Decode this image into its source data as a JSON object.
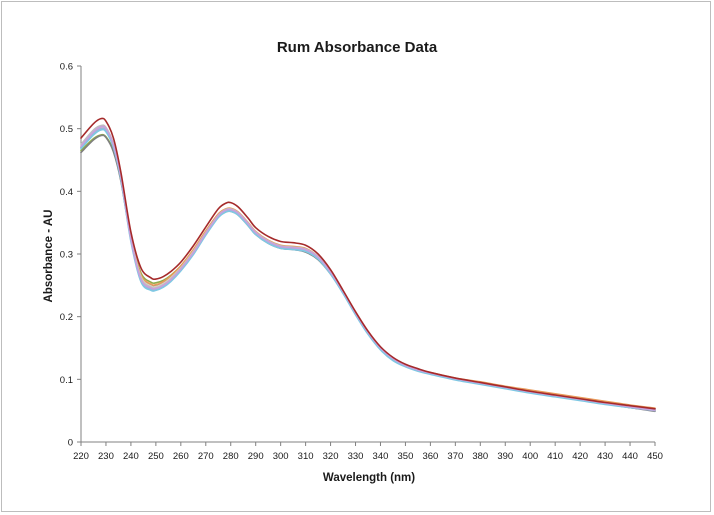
{
  "chart_data": {
    "type": "line",
    "title": "Rum Absorbance Data",
    "xlabel": "Wavelength (nm)",
    "ylabel": "Absorbance - AU",
    "xlim": [
      220,
      450
    ],
    "ylim": [
      0,
      0.6
    ],
    "x_ticks": [
      "220",
      "230",
      "240",
      "250",
      "260",
      "270",
      "280",
      "290",
      "300",
      "310",
      "320",
      "330",
      "340",
      "350",
      "360",
      "370",
      "380",
      "390",
      "400",
      "410",
      "420",
      "430",
      "440",
      "450"
    ],
    "y_ticks": [
      "0",
      "0.1",
      "0.2",
      "0.3",
      "0.4",
      "0.5",
      "0.6"
    ],
    "grid": false,
    "legend": "none",
    "x": [
      220,
      225,
      228,
      230,
      233,
      236,
      240,
      244,
      248,
      250,
      253,
      256,
      260,
      265,
      270,
      275,
      278,
      280,
      283,
      287,
      290,
      295,
      300,
      305,
      310,
      315,
      320,
      325,
      330,
      335,
      340,
      345,
      350,
      355,
      360,
      370,
      380,
      390,
      400,
      410,
      420,
      430,
      440,
      450
    ],
    "series": [
      {
        "color": "#a52a2a",
        "values": [
          0.485,
          0.508,
          0.516,
          0.512,
          0.485,
          0.43,
          0.335,
          0.278,
          0.262,
          0.26,
          0.264,
          0.272,
          0.287,
          0.313,
          0.343,
          0.372,
          0.381,
          0.382,
          0.375,
          0.357,
          0.342,
          0.328,
          0.32,
          0.318,
          0.314,
          0.3,
          0.275,
          0.242,
          0.208,
          0.177,
          0.152,
          0.135,
          0.124,
          0.117,
          0.111,
          0.102,
          0.095,
          0.088,
          0.081,
          0.075,
          0.069,
          0.063,
          0.058,
          0.053
        ]
      },
      {
        "color": "#8faa4a",
        "values": [
          0.465,
          0.484,
          0.49,
          0.487,
          0.465,
          0.418,
          0.328,
          0.27,
          0.255,
          0.254,
          0.258,
          0.266,
          0.281,
          0.306,
          0.334,
          0.36,
          0.368,
          0.369,
          0.363,
          0.346,
          0.332,
          0.318,
          0.31,
          0.308,
          0.305,
          0.293,
          0.27,
          0.24,
          0.207,
          0.176,
          0.151,
          0.134,
          0.123,
          0.116,
          0.11,
          0.101,
          0.094,
          0.086,
          0.079,
          0.073,
          0.067,
          0.061,
          0.055,
          0.05
        ]
      },
      {
        "color": "#7f7f7f",
        "values": [
          0.462,
          0.482,
          0.489,
          0.486,
          0.463,
          0.416,
          0.325,
          0.266,
          0.251,
          0.25,
          0.255,
          0.263,
          0.279,
          0.304,
          0.333,
          0.359,
          0.367,
          0.368,
          0.362,
          0.345,
          0.331,
          0.317,
          0.309,
          0.307,
          0.303,
          0.291,
          0.268,
          0.238,
          0.205,
          0.175,
          0.15,
          0.133,
          0.122,
          0.115,
          0.109,
          0.1,
          0.093,
          0.086,
          0.079,
          0.073,
          0.067,
          0.061,
          0.055,
          0.049
        ]
      },
      {
        "color": "#e89a5a",
        "values": [
          0.47,
          0.492,
          0.5,
          0.497,
          0.472,
          0.423,
          0.328,
          0.267,
          0.252,
          0.251,
          0.256,
          0.265,
          0.281,
          0.307,
          0.337,
          0.364,
          0.372,
          0.373,
          0.367,
          0.35,
          0.336,
          0.322,
          0.314,
          0.312,
          0.309,
          0.296,
          0.272,
          0.241,
          0.207,
          0.176,
          0.151,
          0.134,
          0.123,
          0.116,
          0.111,
          0.102,
          0.096,
          0.089,
          0.083,
          0.077,
          0.071,
          0.065,
          0.059,
          0.054
        ]
      },
      {
        "color": "#d8d0c0",
        "values": [
          0.472,
          0.494,
          0.502,
          0.499,
          0.474,
          0.424,
          0.327,
          0.264,
          0.249,
          0.248,
          0.253,
          0.262,
          0.278,
          0.304,
          0.334,
          0.361,
          0.37,
          0.371,
          0.365,
          0.348,
          0.334,
          0.32,
          0.312,
          0.31,
          0.307,
          0.295,
          0.271,
          0.24,
          0.206,
          0.175,
          0.15,
          0.133,
          0.122,
          0.115,
          0.11,
          0.101,
          0.094,
          0.087,
          0.08,
          0.074,
          0.068,
          0.062,
          0.056,
          0.051
        ]
      },
      {
        "color": "#bfbfbf",
        "values": [
          0.475,
          0.498,
          0.505,
          0.502,
          0.476,
          0.425,
          0.326,
          0.262,
          0.247,
          0.246,
          0.251,
          0.26,
          0.277,
          0.303,
          0.334,
          0.362,
          0.371,
          0.372,
          0.366,
          0.349,
          0.335,
          0.321,
          0.313,
          0.311,
          0.308,
          0.296,
          0.272,
          0.24,
          0.206,
          0.175,
          0.15,
          0.133,
          0.122,
          0.115,
          0.11,
          0.101,
          0.094,
          0.087,
          0.08,
          0.074,
          0.068,
          0.062,
          0.056,
          0.051
        ]
      },
      {
        "color": "#9db4d8",
        "values": [
          0.47,
          0.492,
          0.5,
          0.497,
          0.471,
          0.42,
          0.322,
          0.258,
          0.244,
          0.243,
          0.248,
          0.257,
          0.274,
          0.3,
          0.331,
          0.359,
          0.368,
          0.369,
          0.363,
          0.346,
          0.332,
          0.318,
          0.31,
          0.308,
          0.305,
          0.293,
          0.269,
          0.238,
          0.204,
          0.173,
          0.148,
          0.131,
          0.121,
          0.114,
          0.109,
          0.1,
          0.093,
          0.086,
          0.079,
          0.073,
          0.067,
          0.061,
          0.055,
          0.05
        ]
      },
      {
        "color": "#7ec8e3",
        "values": [
          0.468,
          0.49,
          0.498,
          0.495,
          0.47,
          0.419,
          0.32,
          0.256,
          0.242,
          0.242,
          0.247,
          0.256,
          0.273,
          0.299,
          0.33,
          0.358,
          0.367,
          0.368,
          0.362,
          0.345,
          0.331,
          0.317,
          0.309,
          0.307,
          0.304,
          0.292,
          0.268,
          0.237,
          0.203,
          0.172,
          0.147,
          0.13,
          0.12,
          0.113,
          0.108,
          0.099,
          0.092,
          0.085,
          0.078,
          0.072,
          0.066,
          0.06,
          0.055,
          0.052
        ]
      },
      {
        "color": "#c9a0dc",
        "values": [
          0.472,
          0.495,
          0.503,
          0.5,
          0.474,
          0.423,
          0.324,
          0.26,
          0.246,
          0.245,
          0.25,
          0.259,
          0.276,
          0.302,
          0.333,
          0.361,
          0.37,
          0.371,
          0.365,
          0.348,
          0.334,
          0.32,
          0.312,
          0.31,
          0.307,
          0.295,
          0.271,
          0.24,
          0.206,
          0.175,
          0.15,
          0.133,
          0.122,
          0.115,
          0.11,
          0.101,
          0.094,
          0.087,
          0.08,
          0.074,
          0.068,
          0.062,
          0.056,
          0.051
        ]
      }
    ]
  }
}
